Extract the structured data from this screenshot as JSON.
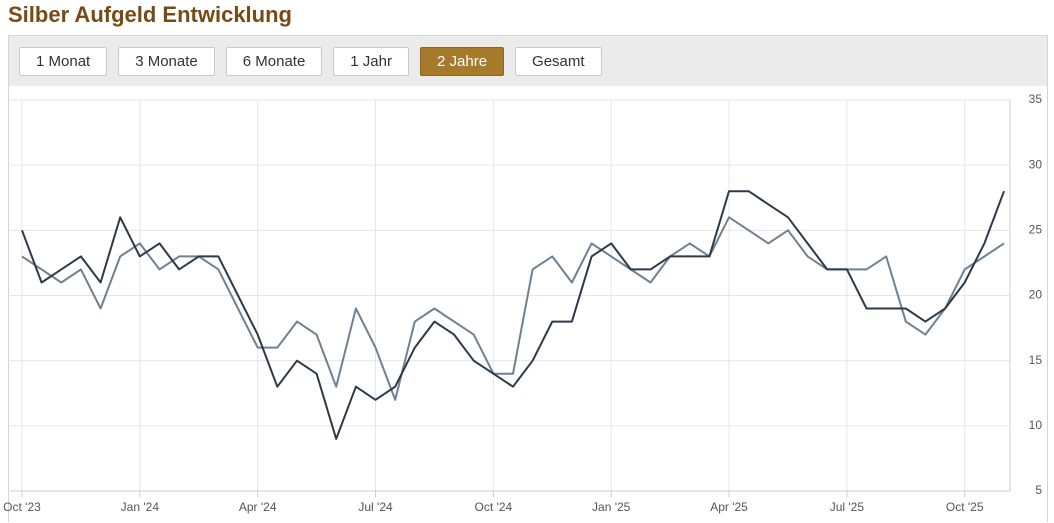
{
  "chart_data": {
    "type": "line",
    "title": "Silber Aufgeld Entwicklung",
    "range_buttons": [
      {
        "label": "1 Monat"
      },
      {
        "label": "3 Monate"
      },
      {
        "label": "6 Monate"
      },
      {
        "label": "1 Jahr"
      },
      {
        "label": "2 Jahre",
        "selected": true
      },
      {
        "label": "Gesamt"
      }
    ],
    "categories": [
      "Oct '23",
      null,
      null,
      null,
      null,
      null,
      "Jan '24",
      null,
      null,
      null,
      null,
      null,
      "Apr '24",
      null,
      null,
      null,
      null,
      null,
      "Jul '24",
      null,
      null,
      null,
      null,
      null,
      "Oct '24",
      null,
      null,
      null,
      null,
      null,
      "Jan '25",
      null,
      null,
      null,
      null,
      null,
      "Apr '25",
      null,
      null,
      null,
      null,
      null,
      "Jul '25",
      null,
      null,
      null,
      null,
      null,
      "Oct '25",
      null,
      null
    ],
    "series": [
      {
        "color": "#2c3a4a",
        "values": [
          25,
          21,
          22,
          23,
          21,
          26,
          23,
          24,
          22,
          23,
          23,
          20,
          17,
          13,
          15,
          14,
          9,
          13,
          12,
          13,
          16,
          18,
          17,
          15,
          14,
          13,
          15,
          18,
          18,
          23,
          24,
          22,
          22,
          23,
          23,
          23,
          28,
          28,
          27,
          26,
          24,
          22,
          22,
          19,
          19,
          19,
          18,
          19,
          21,
          24,
          28
        ]
      },
      {
        "color": "#6f8191",
        "values": [
          23,
          22,
          21,
          22,
          19,
          23,
          24,
          22,
          23,
          23,
          22,
          19,
          16,
          16,
          18,
          17,
          13,
          19,
          16,
          12,
          18,
          19,
          18,
          17,
          14,
          14,
          22,
          23,
          21,
          24,
          23,
          22,
          21,
          23,
          24,
          23,
          26,
          25,
          24,
          25,
          23,
          22,
          22,
          22,
          23,
          18,
          17,
          19,
          22,
          23,
          24
        ]
      }
    ],
    "ylim": [
      5,
      35
    ],
    "yticks": [
      5,
      10,
      15,
      20,
      25,
      30,
      35
    ],
    "grid": true
  }
}
